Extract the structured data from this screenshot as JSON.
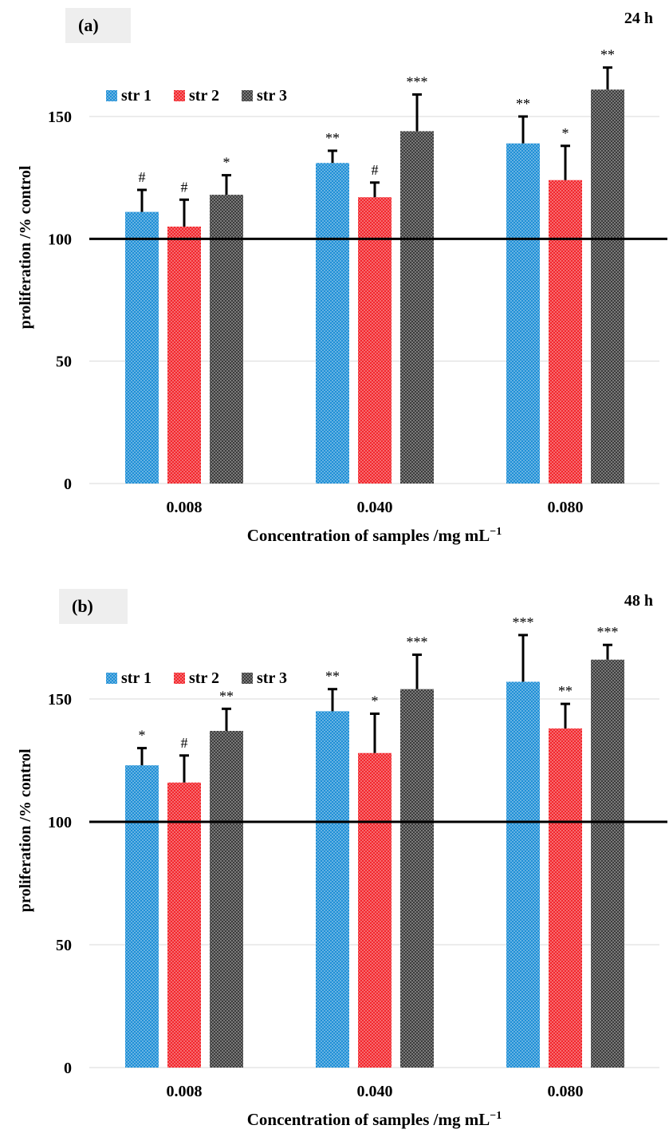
{
  "chart_data": [
    {
      "type": "bar",
      "panel_label": "(a)",
      "time_label": "24 h",
      "title": "",
      "xlabel": "Concentration of samples /mg mL",
      "xlabel_sup": "−1",
      "ylabel": "proliferation /% control",
      "ylim": [
        0,
        180
      ],
      "yticks": [
        "0",
        "50",
        "100",
        "150"
      ],
      "reference_line": 100,
      "categories": [
        "0.008",
        "0.040",
        "0.080"
      ],
      "series": [
        {
          "name": "str 1",
          "color": "#1f8fd6",
          "values": [
            111,
            131,
            139
          ],
          "errors": [
            9,
            5,
            11
          ],
          "annotations": [
            "#",
            "**",
            "**"
          ]
        },
        {
          "name": "str 2",
          "color": "#f2262c",
          "values": [
            105,
            117,
            124
          ],
          "errors": [
            11,
            6,
            14
          ],
          "annotations": [
            "#",
            "#",
            "*"
          ]
        },
        {
          "name": "str 3",
          "color": "#3c3c3c",
          "values": [
            118,
            144,
            161
          ],
          "errors": [
            8,
            15,
            9
          ],
          "annotations": [
            "*",
            "***",
            "**"
          ]
        }
      ],
      "legend": "top-left"
    },
    {
      "type": "bar",
      "panel_label": "(b)",
      "time_label": "48 h",
      "title": "",
      "xlabel": "Concentration of samples /mg mL",
      "xlabel_sup": "−1",
      "ylabel": "proliferation /% control",
      "ylim": [
        0,
        180
      ],
      "yticks": [
        "0",
        "50",
        "100",
        "150"
      ],
      "reference_line": 100,
      "categories": [
        "0.008",
        "0.040",
        "0.080"
      ],
      "series": [
        {
          "name": "str 1",
          "color": "#1f8fd6",
          "values": [
            123,
            145,
            157
          ],
          "errors": [
            7,
            9,
            19
          ],
          "annotations": [
            "*",
            "**",
            "***"
          ]
        },
        {
          "name": "str 2",
          "color": "#f2262c",
          "values": [
            116,
            128,
            138
          ],
          "errors": [
            11,
            16,
            10
          ],
          "annotations": [
            "#",
            "*",
            "**"
          ]
        },
        {
          "name": "str 3",
          "color": "#3c3c3c",
          "values": [
            137,
            154,
            166
          ],
          "errors": [
            9,
            14,
            6
          ],
          "annotations": [
            "**",
            "***",
            "***"
          ]
        }
      ],
      "legend": "top-left"
    }
  ]
}
